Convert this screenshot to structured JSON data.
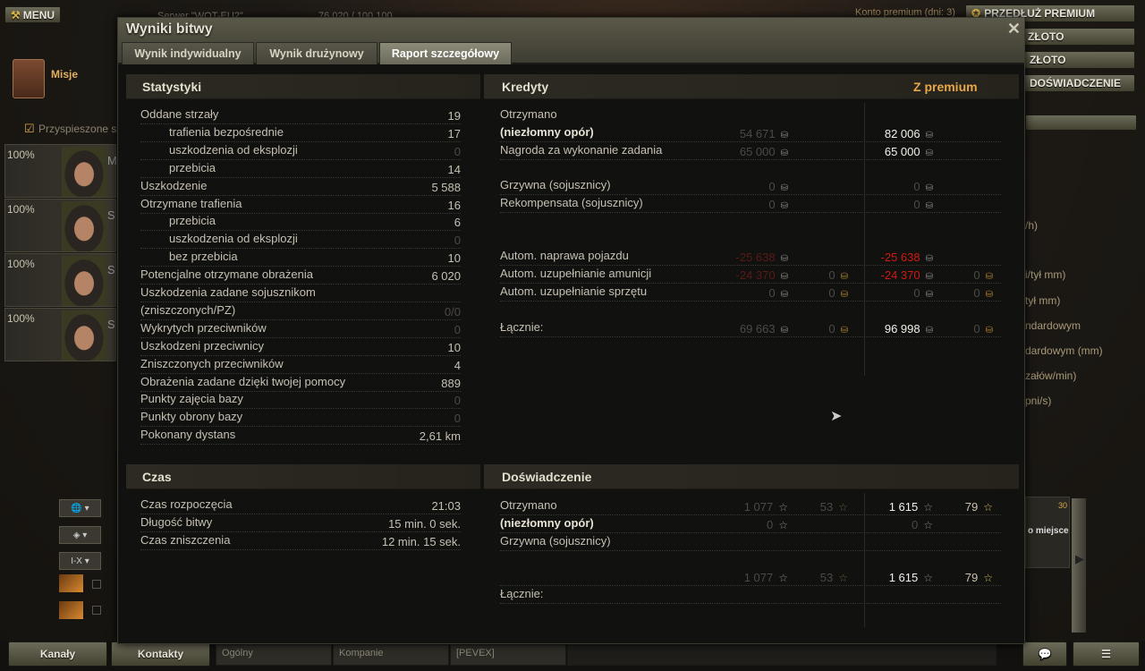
{
  "topbar": {
    "menu": "MENU",
    "server": "Serwer \"WOT-EU2\"",
    "players": "76 020 / 100 100",
    "premium_account": "Konto premium (dni: 3)",
    "extend_premium": "PRZEDŁUŻ PREMIUM",
    "buy_gold": "ZŁOTO",
    "exchange_gold": "ZŁOTO",
    "convert_xp": "DOŚWIADCZENIE"
  },
  "left": {
    "missions": "Misje",
    "accelerated": "Przyspieszone sz",
    "crew": [
      {
        "pct": "100%",
        "initial": "M"
      },
      {
        "pct": "100%",
        "initial": "S"
      },
      {
        "pct": "100%",
        "initial": "S"
      },
      {
        "pct": "100%",
        "initial": "S"
      }
    ],
    "ctl3": "I-X"
  },
  "right_panel": {
    "lines": [
      "/h)",
      "i/tył mm)",
      "tył mm)",
      "ndardowym",
      "dardowym (mm)",
      "załów/min)",
      "pni/s)"
    ],
    "slot": "o miejsce",
    "slot_count": "30"
  },
  "dialog": {
    "title": "Wyniki bitwy",
    "tabs": [
      {
        "label": "Wynik indywidualny"
      },
      {
        "label": "Wynik drużynowy"
      },
      {
        "label": "Raport szczegółowy",
        "active": true
      }
    ],
    "close": "✕"
  },
  "stats": {
    "header": "Statystyki",
    "rows": [
      {
        "label": "Oddane strzały",
        "value": "19"
      },
      {
        "label": "trafienia bezpośrednie",
        "value": "17",
        "indent": true
      },
      {
        "label": "uszkodzenia od eksplozji",
        "value": "0",
        "indent": true,
        "dim": true
      },
      {
        "label": "przebicia",
        "value": "14",
        "indent": true
      },
      {
        "label": "Uszkodzenie",
        "value": "5 588"
      },
      {
        "label": "Otrzymane trafienia",
        "value": "16"
      },
      {
        "label": "przebicia",
        "value": "6",
        "indent": true
      },
      {
        "label": "uszkodzenia od eksplozji",
        "value": "0",
        "indent": true,
        "dim": true
      },
      {
        "label": "bez przebicia",
        "value": "10",
        "indent": true
      },
      {
        "label": "Potencjalne otrzymane obrażenia",
        "value": "6 020"
      },
      {
        "label": "Uszkodzenia zadane sojusznikom",
        "value": ""
      },
      {
        "label": "(zniszczonych/PZ)",
        "value": "0/0",
        "dim": true
      },
      {
        "label": "Wykrytych przeciwników",
        "value": "0",
        "dim": true
      },
      {
        "label": "Uszkodzeni przeciwnicy",
        "value": "10"
      },
      {
        "label": "Zniszczonych przeciwników",
        "value": "4"
      },
      {
        "label": "Obrażenia zadane dzięki twojej pomocy",
        "value": "889"
      },
      {
        "label": "Punkty zajęcia bazy",
        "value": "0",
        "dim": true
      },
      {
        "label": "Punkty obrony bazy",
        "value": "0",
        "dim": true
      },
      {
        "label": "Pokonany dystans",
        "value": "2,61 km"
      }
    ]
  },
  "credits": {
    "header": "Kredyty",
    "premium_header": "Z premium",
    "rows": [
      {
        "label": "Otrzymano",
        "cells": []
      },
      {
        "label": "(niezłomny opór)",
        "bold": true,
        "cells": [
          {
            "v": "54 671",
            "t": "dim"
          },
          null,
          {
            "v": "82 006",
            "t": "white"
          },
          null
        ]
      },
      {
        "label": "Nagroda za wykonanie zadania",
        "cells": [
          {
            "v": "65 000",
            "t": "dim"
          },
          null,
          {
            "v": "65 000",
            "t": "white"
          },
          null
        ]
      },
      {
        "label": "",
        "cells": []
      },
      {
        "label": "Grzywna (sojusznicy)",
        "cells": [
          {
            "v": "0",
            "t": "dim"
          },
          null,
          {
            "v": "0",
            "t": "dim"
          },
          null
        ]
      },
      {
        "label": "Rekompensata (sojusznicy)",
        "cells": [
          {
            "v": "0",
            "t": "dim"
          },
          null,
          {
            "v": "0",
            "t": "dim"
          },
          null
        ]
      },
      {
        "label": "",
        "cells": []
      },
      {
        "label": "",
        "cells": []
      },
      {
        "label": "Autom. naprawa pojazdu",
        "cells": [
          {
            "v": "-25 638",
            "t": "reddim"
          },
          null,
          {
            "v": "-25 638",
            "t": "red"
          },
          null
        ]
      },
      {
        "label": "Autom. uzupełnianie amunicji",
        "cells": [
          {
            "v": "-24 370",
            "t": "reddim"
          },
          {
            "v": "0",
            "t": "dim"
          },
          {
            "v": "-24 370",
            "t": "red"
          },
          {
            "v": "0",
            "t": "dim"
          }
        ]
      },
      {
        "label": "Autom. uzupełnianie sprzętu",
        "cells": [
          {
            "v": "0",
            "t": "dim"
          },
          {
            "v": "0",
            "t": "dim"
          },
          {
            "v": "0",
            "t": "dim"
          },
          {
            "v": "0",
            "t": "dim"
          }
        ]
      },
      {
        "label": "",
        "cells": []
      },
      {
        "label": "Łącznie:",
        "cells": [
          {
            "v": "69 663",
            "t": "dim"
          },
          {
            "v": "0",
            "t": "dim"
          },
          {
            "v": "96 998",
            "t": "white"
          },
          {
            "v": "0",
            "t": "dim"
          }
        ]
      }
    ]
  },
  "time": {
    "header": "Czas",
    "rows": [
      {
        "label": "Czas rozpoczęcia",
        "value": "21:03"
      },
      {
        "label": "Długość bitwy",
        "value": "15 min. 0 sek."
      },
      {
        "label": "Czas zniszczenia",
        "value": "12 min. 15 sek."
      }
    ]
  },
  "xp": {
    "header": "Doświadczenie",
    "rows": [
      {
        "label": "Otrzymano",
        "cells": [
          {
            "v": "1 077",
            "t": "dim"
          },
          {
            "v": "53",
            "t": "dim"
          },
          {
            "v": "1 615",
            "t": "white"
          },
          {
            "v": "79",
            "t": ""
          }
        ]
      },
      {
        "label": "(niezłomny opór)",
        "bold": true,
        "cells": [
          {
            "v": "0",
            "t": "dim"
          },
          null,
          {
            "v": "0",
            "t": "dim"
          },
          null
        ]
      },
      {
        "label": "Grzywna (sojusznicy)",
        "cells": []
      },
      {
        "label": "",
        "cells": []
      },
      {
        "label": "",
        "cells": [
          {
            "v": "1 077",
            "t": "dim"
          },
          {
            "v": "53",
            "t": "dim"
          },
          {
            "v": "1 615",
            "t": "white"
          },
          {
            "v": "79",
            "t": ""
          }
        ]
      },
      {
        "label": "Łącznie:",
        "cells": []
      }
    ]
  },
  "bottom": {
    "channels": "Kanały",
    "contacts": "Kontakty",
    "chat_tabs": [
      "Ogólny",
      "Kompanie",
      "[PEVEX]"
    ]
  },
  "colors": {
    "accent": "#e8a848",
    "negative": "#d01a10"
  }
}
